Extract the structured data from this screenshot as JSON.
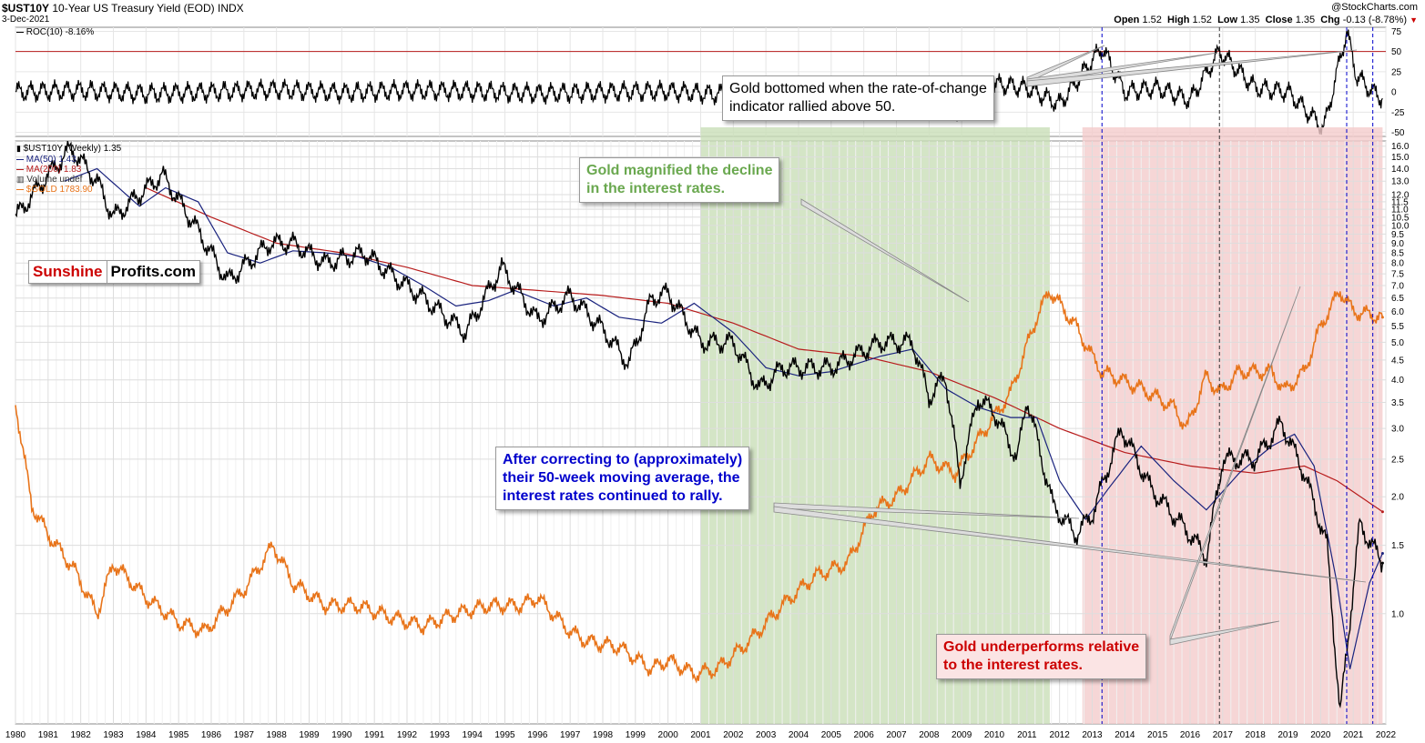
{
  "header": {
    "symbol": "$UST10Y",
    "description": "10-Year US Treasury Yield (EOD)",
    "exchange": "INDX",
    "date": "3-Dec-2021",
    "watermark": "@StockCharts.com",
    "open_label": "Open",
    "open": "1.52",
    "high_label": "High",
    "high": "1.52",
    "low_label": "Low",
    "low": "1.35",
    "close_label": "Close",
    "close": "1.35",
    "chg_label": "Chg",
    "chg": "-0.13 (-8.78%)"
  },
  "roc_panel": {
    "label": "ROC(10) -8.16%",
    "y_ticks": [
      "75",
      "50",
      "25",
      "0",
      "-25",
      "-50"
    ]
  },
  "legend": {
    "main": "$UST10Y (Weekly) 1.35",
    "ma50": "MA(50) 1.43",
    "ma200": "MA(200) 1.83",
    "volume": "Volume undef",
    "gold": "$GOLD 1783.90"
  },
  "logo": {
    "part1": "Sunshine",
    "part2": "Profits.com"
  },
  "annotations": {
    "roc_note": [
      "Gold bottomed when the rate-of-change",
      "indicator rallied above 50."
    ],
    "green_note": [
      "Gold magnified the decline",
      "in the interest rates."
    ],
    "blue_note": [
      "After correcting to (approximately)",
      "their 50-week moving average, the",
      "interest rates continued to rally."
    ],
    "red_note": [
      "Gold underperforms relative",
      "to the interest rates."
    ]
  },
  "colors": {
    "yield": "#000000",
    "ma50": "#1a237e",
    "ma200": "#b71c1c",
    "gold": "#e8741a",
    "green_zone": "#c9deb8",
    "red_zone": "#f4cccc",
    "roc_ref": "#b71c1c",
    "note_green": "#6aa84f",
    "note_blue": "#0000cc",
    "note_red": "#cc0000",
    "logo_red": "#cc0000"
  },
  "chart_data": [
    {
      "type": "line",
      "title": "ROC(10) -8.16%",
      "ylim": [
        -55,
        80
      ],
      "reference_line": 50,
      "x": [
        1980,
        1982,
        1984,
        1986,
        1988,
        1990,
        1992,
        1994,
        1996,
        1998,
        2000,
        2001.5,
        2003,
        2005,
        2007,
        2008.9,
        2010,
        2011,
        2012,
        2013.3,
        2014,
        2015,
        2016,
        2016.9,
        2018,
        2019,
        2020.1,
        2020.8,
        2021.1,
        2021.6,
        2021.9
      ],
      "values": [
        0,
        2,
        -2,
        0,
        3,
        -1,
        2,
        1,
        -2,
        0,
        1,
        -3,
        5,
        0,
        2,
        -25,
        10,
        5,
        -15,
        55,
        0,
        5,
        -10,
        50,
        5,
        0,
        -45,
        75,
        20,
        0,
        -8
      ]
    },
    {
      "type": "line",
      "ylabel": "Yield",
      "y_scale": "log",
      "ylim": [
        0.52,
        16.5
      ],
      "y_ticks": [
        "16.0",
        "15.0",
        "14.0",
        "13.0",
        "12.0",
        "11.5",
        "11.0",
        "10.5",
        "10.0",
        "9.5",
        "9.0",
        "8.5",
        "8.0",
        "7.5",
        "7.0",
        "6.5",
        "6.0",
        "5.5",
        "5.0",
        "4.5",
        "4.0",
        "3.5",
        "3.0",
        "2.5",
        "2.0",
        "1.5",
        "1.0"
      ],
      "x_ticks": [
        "1980",
        "1981",
        "1982",
        "1983",
        "1984",
        "1985",
        "1986",
        "1987",
        "1988",
        "1989",
        "1990",
        "1991",
        "1992",
        "1993",
        "1994",
        "1995",
        "1996",
        "1997",
        "1998",
        "1999",
        "2000",
        "2001",
        "2002",
        "2003",
        "2004",
        "2005",
        "2006",
        "2007",
        "2008",
        "2009",
        "2010",
        "2011",
        "2012",
        "2013",
        "2014",
        "2015",
        "2016",
        "2017",
        "2018",
        "2019",
        "2020",
        "2021",
        "2022"
      ],
      "shaded_regions": [
        {
          "from": 2001.0,
          "to": 2011.7,
          "color": "green"
        },
        {
          "from": 2012.7,
          "to": 2021.9,
          "color": "red"
        }
      ],
      "vertical_markers": [
        2013.3,
        2016.9,
        2020.8,
        2021.6
      ],
      "series": [
        {
          "name": "$UST10Y (Weekly) 1.35",
          "x": [
            1980.0,
            1981.0,
            1981.7,
            1982.5,
            1983.0,
            1984.5,
            1985.5,
            1986.5,
            1987.8,
            1988.5,
            1989.5,
            1990.7,
            1991.5,
            1992.5,
            1993.8,
            1994.9,
            1996.0,
            1997.0,
            1998.0,
            1998.8,
            1999.5,
            2000.0,
            2001.0,
            2002.0,
            2002.8,
            2003.5,
            2004.0,
            2005.0,
            2006.5,
            2007.5,
            2008.0,
            2008.5,
            2008.95,
            2009.5,
            2010.0,
            2010.7,
            2011.0,
            2011.8,
            2012.5,
            2013.0,
            2013.9,
            2014.8,
            2016.0,
            2016.5,
            2017.0,
            2018.0,
            2018.8,
            2019.5,
            2020.2,
            2020.6,
            2021.2,
            2021.9
          ],
          "values": [
            10.5,
            13.5,
            15.8,
            13.0,
            10.5,
            13.5,
            10.0,
            7.2,
            9.0,
            9.0,
            8.0,
            8.5,
            7.5,
            6.5,
            5.3,
            7.8,
            5.7,
            6.6,
            5.4,
            4.4,
            6.5,
            6.7,
            5.0,
            5.0,
            3.8,
            4.3,
            4.3,
            4.3,
            5.0,
            5.0,
            3.6,
            4.1,
            2.2,
            3.6,
            3.3,
            2.5,
            3.6,
            1.9,
            1.6,
            1.8,
            3.0,
            2.1,
            1.6,
            1.4,
            2.5,
            2.5,
            3.1,
            2.3,
            1.5,
            0.55,
            1.7,
            1.35
          ]
        },
        {
          "name": "MA(50) 1.43",
          "x": [
            1981.5,
            1982.5,
            1983.8,
            1984.6,
            1985.6,
            1986.5,
            1987.5,
            1988.5,
            1989.5,
            1990.5,
            1991.5,
            1992.5,
            1993.5,
            1994.5,
            1995.3,
            1996.5,
            1997.5,
            1998.5,
            1999.8,
            2000.8,
            2002.0,
            2003.0,
            2004.0,
            2005.0,
            2006.5,
            2007.5,
            2008.5,
            2009.5,
            2010.5,
            2011.3,
            2012.0,
            2012.8,
            2013.5,
            2014.5,
            2015.5,
            2016.5,
            2017.5,
            2018.5,
            2019.2,
            2019.8,
            2020.5,
            2020.9,
            2021.5,
            2021.9
          ],
          "values": [
            13.0,
            14.0,
            11.2,
            12.5,
            11.5,
            8.5,
            8.0,
            8.6,
            8.5,
            8.3,
            7.8,
            7.0,
            6.2,
            6.4,
            6.8,
            6.2,
            6.5,
            5.8,
            5.6,
            6.3,
            5.3,
            4.3,
            4.1,
            4.2,
            4.6,
            4.8,
            3.8,
            3.4,
            3.2,
            3.2,
            2.2,
            1.75,
            2.1,
            2.7,
            2.2,
            1.85,
            2.3,
            2.7,
            2.9,
            2.4,
            1.2,
            0.72,
            1.2,
            1.43
          ]
        },
        {
          "name": "MA(200) 1.83",
          "x": [
            1984.0,
            1986.0,
            1988.0,
            1990.0,
            1992.0,
            1994.0,
            1996.0,
            1998.0,
            2000.0,
            2002.0,
            2004.0,
            2006.0,
            2008.0,
            2010.0,
            2012.0,
            2014.0,
            2016.0,
            2018.0,
            2019.5,
            2020.5,
            2021.9
          ],
          "values": [
            12.5,
            10.5,
            9.0,
            8.5,
            7.8,
            7.0,
            6.8,
            6.6,
            6.3,
            5.6,
            4.8,
            4.6,
            4.2,
            3.6,
            3.0,
            2.6,
            2.4,
            2.3,
            2.4,
            2.2,
            1.83
          ]
        },
        {
          "name": "$GOLD 1783.90",
          "x": [
            1980.0,
            1980.5,
            1981.0,
            1981.8,
            1982.5,
            1983.0,
            1984.0,
            1985.0,
            1985.8,
            1987.0,
            1987.9,
            1988.5,
            1989.5,
            1990.5,
            1991.5,
            1992.5,
            1993.5,
            1994.5,
            1995.5,
            1996.0,
            1997.0,
            1997.5,
            1998.5,
            1999.5,
            2000.0,
            2000.8,
            2001.5,
            2002.5,
            2003.5,
            2004.5,
            2005.5,
            2006.3,
            2007.0,
            2008.0,
            2008.8,
            2009.5,
            2010.5,
            2011.3,
            2011.7,
            2012.5,
            2013.0,
            2013.3,
            2013.9,
            2014.5,
            2015.5,
            2015.9,
            2016.5,
            2016.9,
            2017.5,
            2018.5,
            2018.9,
            2019.5,
            2020.0,
            2020.6,
            2021.0,
            2021.5,
            2021.9
          ],
          "values": [
            3.5,
            1.9,
            1.6,
            1.3,
            1.0,
            1.35,
            1.1,
            0.95,
            0.9,
            1.15,
            1.5,
            1.2,
            1.05,
            1.05,
            0.98,
            0.93,
            1.0,
            1.05,
            1.05,
            1.1,
            0.9,
            0.85,
            0.82,
            0.72,
            0.76,
            0.7,
            0.72,
            0.85,
            1.05,
            1.25,
            1.35,
            1.85,
            2.0,
            2.5,
            2.3,
            2.8,
            3.7,
            5.8,
            6.8,
            5.5,
            4.6,
            4.2,
            4.0,
            3.8,
            3.4,
            3.0,
            4.1,
            3.7,
            4.2,
            4.2,
            3.75,
            4.2,
            5.5,
            6.8,
            6.0,
            5.9,
            5.8
          ]
        }
      ]
    }
  ]
}
